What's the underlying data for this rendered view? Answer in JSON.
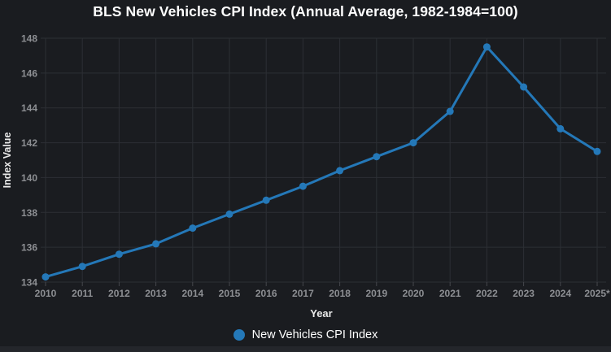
{
  "title": "BLS New Vehicles CPI Index (Annual Average, 1982-1984=100)",
  "colors": {
    "background": "#1a1c20",
    "footer": "#24262b",
    "grid": "#2c2f34",
    "tick_mark": "#45474c",
    "tick_label": "#8d8f93",
    "axis_title": "#eaeaea",
    "title_text": "#ffffff",
    "line": "#2478b8",
    "legend_text": "#ffffff"
  },
  "chart_data": {
    "type": "line",
    "title": "BLS New Vehicles CPI Index (Annual Average, 1982-1984=100)",
    "xlabel": "Year",
    "ylabel": "Index Value",
    "categories": [
      "2010",
      "2011",
      "2012",
      "2013",
      "2014",
      "2015",
      "2016",
      "2017",
      "2018",
      "2019",
      "2020",
      "2021",
      "2022",
      "2023",
      "2024",
      "2025*"
    ],
    "series": [
      {
        "name": "New Vehicles CPI Index",
        "values": [
          134.3,
          134.9,
          135.6,
          136.2,
          137.1,
          137.9,
          138.7,
          139.5,
          140.4,
          141.2,
          142.0,
          143.8,
          147.5,
          145.2,
          142.8,
          141.5
        ]
      }
    ],
    "ylim": [
      134,
      148
    ],
    "y_tick_labels": [
      "134",
      "136",
      "138",
      "140",
      "142",
      "144",
      "146",
      "148"
    ],
    "grid": true,
    "legend_position": "bottom"
  },
  "legend": {
    "items": [
      {
        "label": "New Vehicles CPI Index",
        "color": "#2478b8"
      }
    ]
  }
}
